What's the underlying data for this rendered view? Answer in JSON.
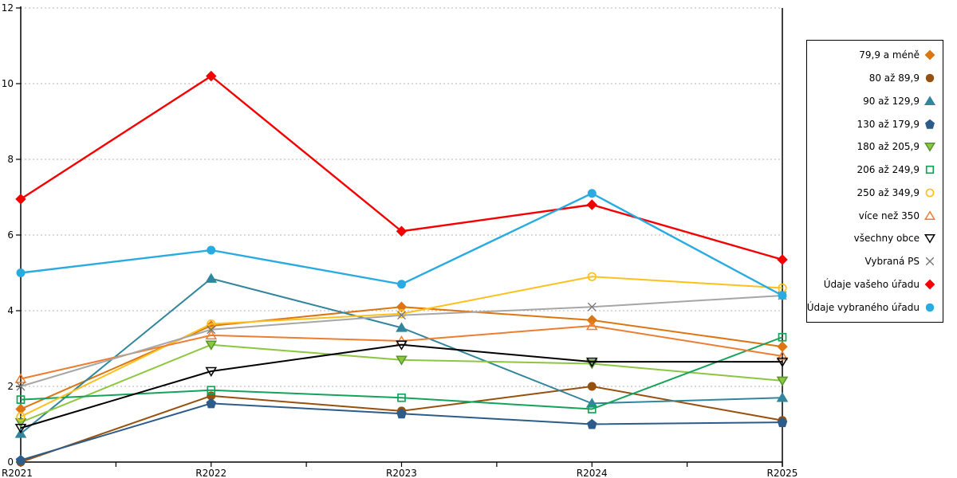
{
  "chart_data": {
    "type": "line",
    "title": "",
    "xlabel": "",
    "ylabel": "",
    "categories": [
      "R2021",
      "R2022",
      "R2023",
      "R2024",
      "R2025"
    ],
    "ylim": [
      0,
      12
    ],
    "yticks": [
      0,
      2,
      4,
      6,
      8,
      10,
      12
    ],
    "grid": "horizontal dotted gridlines at each y tick",
    "legend_position": "right",
    "axis_color": "#000000",
    "gridline_color": "#b3b3b3",
    "series": [
      {
        "name": "79,9 a méně",
        "marker": "diamond",
        "filled": true,
        "color": "#dc7612",
        "values": [
          1.4,
          3.6,
          4.1,
          3.75,
          3.05
        ]
      },
      {
        "name": "80 až 89,9",
        "marker": "circle",
        "filled": true,
        "color": "#97510f",
        "values": [
          0.0,
          1.75,
          1.35,
          2.0,
          1.1
        ]
      },
      {
        "name": "90 až 129,9",
        "marker": "triangle-up",
        "filled": true,
        "color": "#31859c",
        "values": [
          0.75,
          4.85,
          3.55,
          1.55,
          1.7
        ]
      },
      {
        "name": "130 až 179,9",
        "marker": "pentagon",
        "filled": true,
        "color": "#2e5c8a",
        "values": [
          0.05,
          1.55,
          1.28,
          1.0,
          1.05
        ]
      },
      {
        "name": "180 až 205,9",
        "marker": "triangle-down",
        "filled": true,
        "color": "#8dc63f",
        "marker_stroke": "#55952f",
        "values": [
          1.05,
          3.1,
          2.7,
          2.6,
          2.15
        ]
      },
      {
        "name": "206 až 249,9",
        "marker": "square",
        "filled": false,
        "color": "#14a35a",
        "values": [
          1.65,
          1.9,
          1.7,
          1.4,
          3.3
        ]
      },
      {
        "name": "250 až 349,9",
        "marker": "circle",
        "filled": false,
        "color": "#ffc01e",
        "values": [
          1.2,
          3.65,
          3.92,
          4.9,
          4.6
        ]
      },
      {
        "name": "více než 350",
        "marker": "triangle-up",
        "filled": false,
        "color": "#ed7d31",
        "values": [
          2.2,
          3.35,
          3.2,
          3.6,
          2.8
        ]
      },
      {
        "name": "všechny obce",
        "marker": "triangle-down",
        "filled": false,
        "color": "#000000",
        "values": [
          0.9,
          2.4,
          3.1,
          2.65,
          2.65
        ]
      },
      {
        "name": "Vybraná PS",
        "marker": "x",
        "filled": false,
        "color": "#757575",
        "line_color": "#a6a6a6",
        "values": [
          2.0,
          3.5,
          3.88,
          4.1,
          4.4
        ]
      },
      {
        "name": "Údaje vašeho úřadu",
        "marker": "diamond",
        "filled": true,
        "color": "#f40000",
        "line_width": 2.4,
        "values": [
          6.95,
          10.2,
          6.1,
          6.8,
          5.35
        ]
      },
      {
        "name": "Údaje vybraného úřadu",
        "marker": "circle",
        "filled": true,
        "color": "#29abe2",
        "line_width": 2.4,
        "values": [
          5.0,
          5.6,
          4.7,
          7.1,
          4.4
        ]
      }
    ]
  }
}
